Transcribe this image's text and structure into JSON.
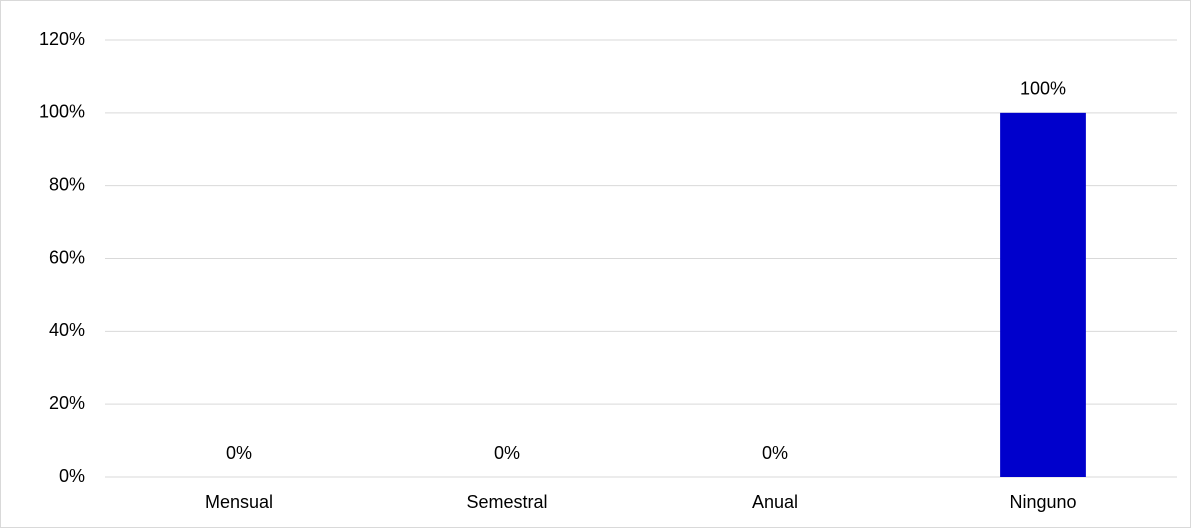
{
  "chart_data": {
    "type": "bar",
    "categories": [
      "Mensual",
      "Semestral",
      "Anual",
      "Ninguno"
    ],
    "values": [
      0,
      0,
      0,
      100
    ],
    "value_labels": [
      "0%",
      "0%",
      "0%",
      "100%"
    ],
    "color": "#0000cc",
    "ylim": [
      0,
      120
    ],
    "yticks": [
      {
        "value": 0,
        "label": "0%"
      },
      {
        "value": 20,
        "label": "20%"
      },
      {
        "value": 40,
        "label": "40%"
      },
      {
        "value": 60,
        "label": "60%"
      },
      {
        "value": 80,
        "label": "80%"
      },
      {
        "value": 100,
        "label": "100%"
      },
      {
        "value": 120,
        "label": "120%"
      }
    ],
    "grid": true
  }
}
